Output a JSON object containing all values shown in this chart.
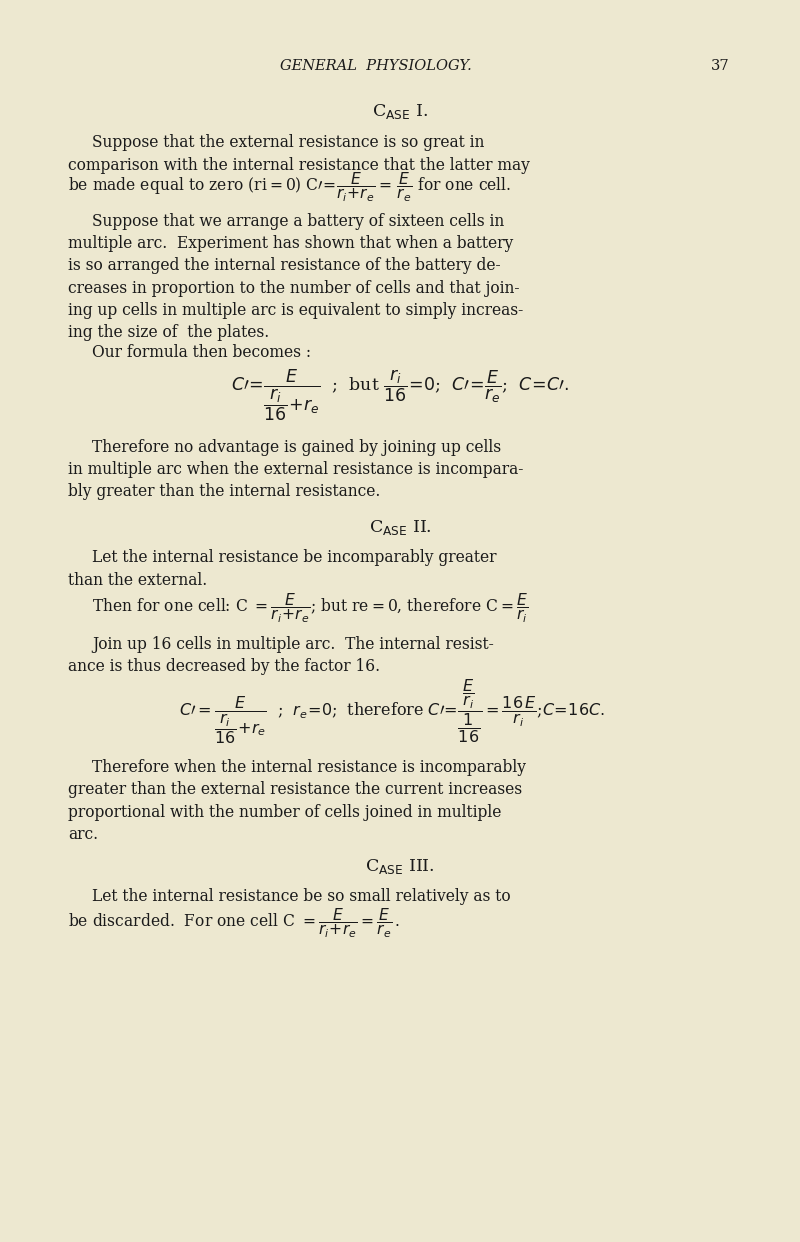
{
  "bg_color": "#ede8d0",
  "text_color": "#1a1a1a",
  "page_width": 8.0,
  "page_height": 12.42,
  "dpi": 100
}
